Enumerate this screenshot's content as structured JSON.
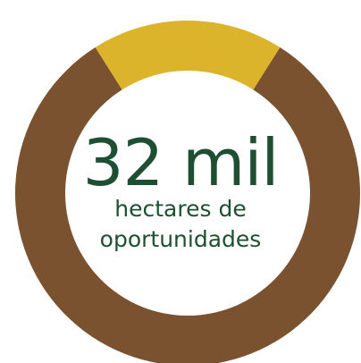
{
  "chart_data": {
    "type": "pie",
    "style": "donut",
    "slices": [
      {
        "value": 82,
        "color": "#7a5230"
      },
      {
        "value": 18,
        "color": "#dbb42b"
      }
    ],
    "highlight_slice_position": "top"
  },
  "center": {
    "headline": "32 mil",
    "subline_1": "hectares de",
    "subline_2": "oportunidades"
  },
  "colors": {
    "ring_primary": "#7a5230",
    "ring_highlight": "#dbb42b",
    "text": "#1f4f33",
    "background": "#ffffff"
  }
}
